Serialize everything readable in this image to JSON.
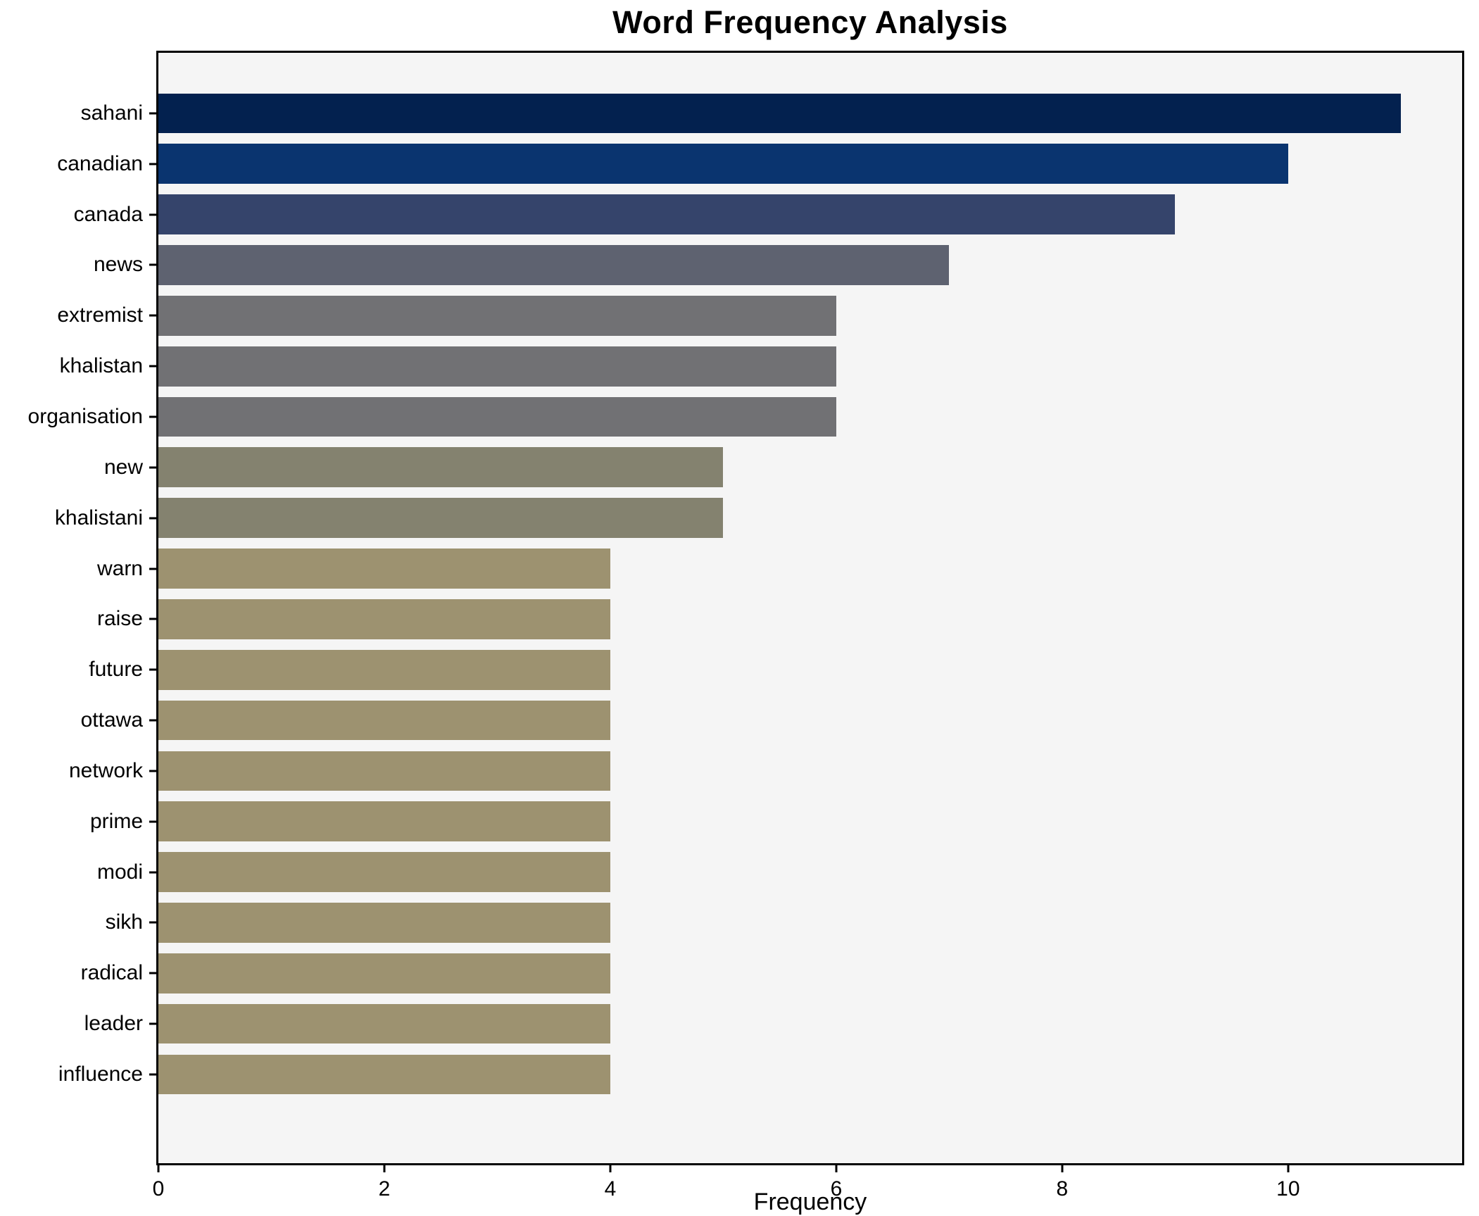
{
  "chart_data": {
    "type": "bar",
    "orientation": "horizontal",
    "title": "Word Frequency Analysis",
    "xlabel": "Frequency",
    "ylabel": "",
    "categories": [
      "sahani",
      "canadian",
      "canada",
      "news",
      "extremist",
      "khalistan",
      "organisation",
      "new",
      "khalistani",
      "warn",
      "raise",
      "future",
      "ottawa",
      "network",
      "prime",
      "modi",
      "sikh",
      "radical",
      "leader",
      "influence"
    ],
    "values": [
      11,
      10,
      9,
      7,
      6,
      6,
      6,
      5,
      5,
      4,
      4,
      4,
      4,
      4,
      4,
      4,
      4,
      4,
      4,
      4
    ],
    "bar_colors": [
      "#03214f",
      "#0a346f",
      "#35446b",
      "#5e6270",
      "#717174",
      "#717174",
      "#717174",
      "#84826f",
      "#84826f",
      "#9d9270",
      "#9d9270",
      "#9d9270",
      "#9d9270",
      "#9d9270",
      "#9d9270",
      "#9d9270",
      "#9d9270",
      "#9d9270",
      "#9d9270",
      "#9d9270"
    ],
    "xlim": [
      0,
      11.54
    ],
    "xticks": [
      0,
      2,
      4,
      6,
      8,
      10
    ],
    "grid": false,
    "legend": "none",
    "plot_background": "#f5f5f5",
    "page_background": "#ffffff",
    "spine_color": "#000000"
  }
}
